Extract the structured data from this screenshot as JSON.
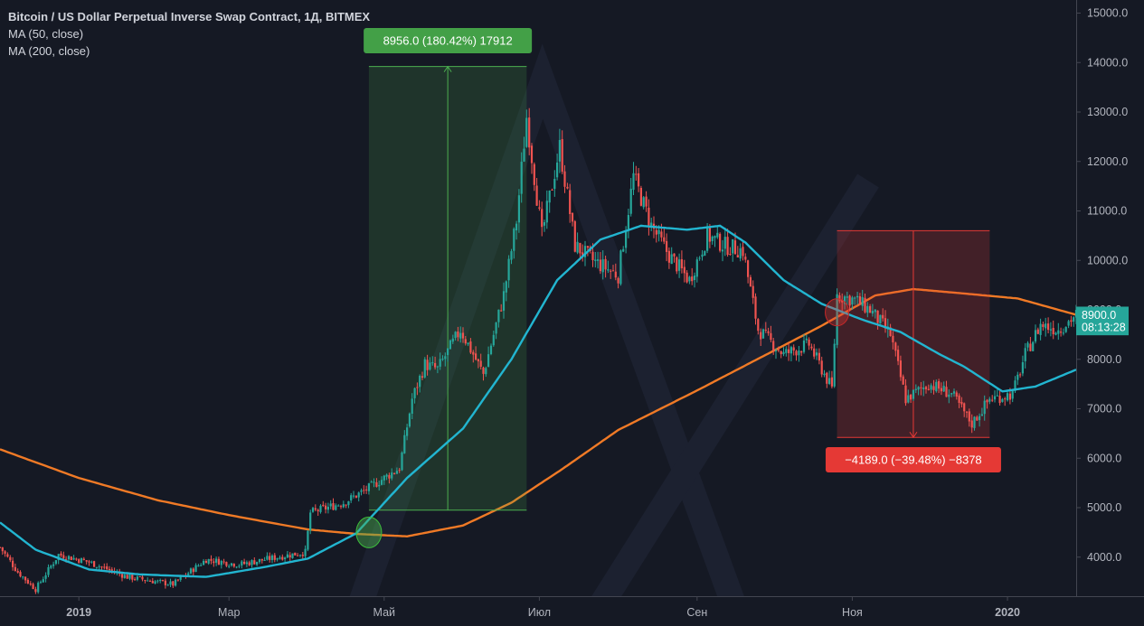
{
  "legend": {
    "title": "Bitcoin / US Dollar Perpetual Inverse Swap Contract, 1Д, BITMEX",
    "ma50": "MA (50, close)",
    "ma200": "MA (200, close)"
  },
  "colors": {
    "background": "#151924",
    "up": "#26a69a",
    "down": "#ef5350",
    "ma50": "#22b5d0",
    "ma200": "#f07a26",
    "measure_up": "#4caf50",
    "measure_down": "#e53935"
  },
  "chart_data": {
    "type": "candlestick",
    "y_axis": {
      "min": 3200,
      "max": 15200,
      "ticks": [
        "15000.0",
        "14000.0",
        "13000.0",
        "12000.0",
        "11000.0",
        "10000.0",
        "9000.0",
        "8000.0",
        "7000.0",
        "6000.0",
        "5000.0",
        "4000.0"
      ],
      "tick_values": [
        15000,
        14000,
        13000,
        12000,
        11000,
        10000,
        9000,
        8000,
        7000,
        6000,
        5000,
        4000
      ]
    },
    "x_axis": {
      "start": "2018-12-01",
      "end": "2020-01-28",
      "labels": [
        {
          "date": "2019-01-01",
          "text": "2019",
          "bold": true
        },
        {
          "date": "2019-03-01",
          "text": "Мар",
          "bold": false
        },
        {
          "date": "2019-05-01",
          "text": "Май",
          "bold": false
        },
        {
          "date": "2019-07-01",
          "text": "Июл",
          "bold": false
        },
        {
          "date": "2019-09-01",
          "text": "Сен",
          "bold": false
        },
        {
          "date": "2019-11-01",
          "text": "Ноя",
          "bold": false
        },
        {
          "date": "2020-01-01",
          "text": "2020",
          "bold": true
        }
      ]
    },
    "price_keypoints": [
      [
        "2018-12-01",
        4200
      ],
      [
        "2018-12-08",
        3700
      ],
      [
        "2018-12-15",
        3350
      ],
      [
        "2018-12-24",
        4050
      ],
      [
        "2019-01-05",
        3900
      ],
      [
        "2019-01-20",
        3600
      ],
      [
        "2019-02-07",
        3450
      ],
      [
        "2019-02-20",
        3950
      ],
      [
        "2019-03-05",
        3850
      ],
      [
        "2019-03-20",
        4000
      ],
      [
        "2019-03-31",
        4100
      ],
      [
        "2019-04-02",
        4900
      ],
      [
        "2019-04-15",
        5100
      ],
      [
        "2019-04-25",
        5400
      ],
      [
        "2019-05-07",
        5800
      ],
      [
        "2019-05-12",
        7200
      ],
      [
        "2019-05-17",
        7900
      ],
      [
        "2019-05-22",
        7800
      ],
      [
        "2019-05-31",
        8600
      ],
      [
        "2019-06-09",
        7700
      ],
      [
        "2019-06-17",
        9300
      ],
      [
        "2019-06-22",
        10800
      ],
      [
        "2019-06-26",
        12900
      ],
      [
        "2019-07-02",
        10500
      ],
      [
        "2019-07-09",
        12300
      ],
      [
        "2019-07-15",
        10300
      ],
      [
        "2019-07-22",
        10000
      ],
      [
        "2019-08-01",
        9700
      ],
      [
        "2019-08-07",
        11700
      ],
      [
        "2019-08-14",
        10700
      ],
      [
        "2019-08-21",
        10100
      ],
      [
        "2019-08-29",
        9600
      ],
      [
        "2019-09-05",
        10500
      ],
      [
        "2019-09-12",
        10300
      ],
      [
        "2019-09-19",
        10200
      ],
      [
        "2019-09-25",
        8600
      ],
      [
        "2019-10-05",
        8100
      ],
      [
        "2019-10-15",
        8300
      ],
      [
        "2019-10-24",
        7400
      ],
      [
        "2019-10-26",
        9300
      ],
      [
        "2019-11-02",
        9200
      ],
      [
        "2019-11-08",
        9000
      ],
      [
        "2019-11-16",
        8500
      ],
      [
        "2019-11-22",
        7200
      ],
      [
        "2019-12-01",
        7500
      ],
      [
        "2019-12-10",
        7300
      ],
      [
        "2019-12-18",
        6700
      ],
      [
        "2019-12-25",
        7200
      ],
      [
        "2020-01-03",
        7300
      ],
      [
        "2020-01-08",
        8100
      ],
      [
        "2020-01-14",
        8700
      ],
      [
        "2020-01-21",
        8600
      ],
      [
        "2020-01-28",
        8900
      ]
    ],
    "ma50_keypoints": [
      [
        "2018-12-01",
        4700
      ],
      [
        "2018-12-15",
        4150
      ],
      [
        "2019-01-05",
        3750
      ],
      [
        "2019-01-25",
        3650
      ],
      [
        "2019-02-20",
        3600
      ],
      [
        "2019-03-15",
        3800
      ],
      [
        "2019-04-01",
        3970
      ],
      [
        "2019-04-20",
        4480
      ],
      [
        "2019-05-10",
        5600
      ],
      [
        "2019-06-01",
        6600
      ],
      [
        "2019-06-20",
        8000
      ],
      [
        "2019-07-08",
        9600
      ],
      [
        "2019-07-25",
        10420
      ],
      [
        "2019-08-10",
        10700
      ],
      [
        "2019-08-28",
        10620
      ],
      [
        "2019-09-10",
        10700
      ],
      [
        "2019-09-20",
        10360
      ],
      [
        "2019-10-05",
        9600
      ],
      [
        "2019-10-20",
        9120
      ],
      [
        "2019-11-05",
        8800
      ],
      [
        "2019-11-20",
        8550
      ],
      [
        "2019-12-05",
        8110
      ],
      [
        "2019-12-15",
        7850
      ],
      [
        "2019-12-30",
        7350
      ],
      [
        "2020-01-12",
        7450
      ],
      [
        "2020-01-28",
        7790
      ]
    ],
    "ma200_keypoints": [
      [
        "2018-12-01",
        6180
      ],
      [
        "2019-01-01",
        5600
      ],
      [
        "2019-02-01",
        5150
      ],
      [
        "2019-03-01",
        4850
      ],
      [
        "2019-04-01",
        4560
      ],
      [
        "2019-04-20",
        4470
      ],
      [
        "2019-05-10",
        4420
      ],
      [
        "2019-06-01",
        4640
      ],
      [
        "2019-06-20",
        5100
      ],
      [
        "2019-07-10",
        5780
      ],
      [
        "2019-08-01",
        6570
      ],
      [
        "2019-09-01",
        7370
      ],
      [
        "2019-10-01",
        8170
      ],
      [
        "2019-10-20",
        8680
      ],
      [
        "2019-11-10",
        9290
      ],
      [
        "2019-11-25",
        9420
      ],
      [
        "2019-12-15",
        9330
      ],
      [
        "2020-01-05",
        9230
      ],
      [
        "2020-01-28",
        8900
      ]
    ],
    "events": [
      {
        "type": "golden-cross",
        "date": "2019-04-25",
        "price": 4500
      },
      {
        "type": "death-cross",
        "date": "2019-10-26",
        "price": 8950
      }
    ],
    "measures": [
      {
        "direction": "up",
        "start": "2019-04-25",
        "end": "2019-06-26",
        "from": 4950,
        "to": 13920,
        "label": "8956.0 (180.42%) 17912"
      },
      {
        "direction": "down",
        "start": "2019-10-26",
        "end": "2019-12-25",
        "from": 10600,
        "to": 6420,
        "label": "−4189.0 (−39.48%) −8378"
      }
    ],
    "price_badges": [
      {
        "value": 8900,
        "label": "8900.0"
      },
      {
        "value": 8650,
        "label": "08:13:28"
      }
    ]
  }
}
